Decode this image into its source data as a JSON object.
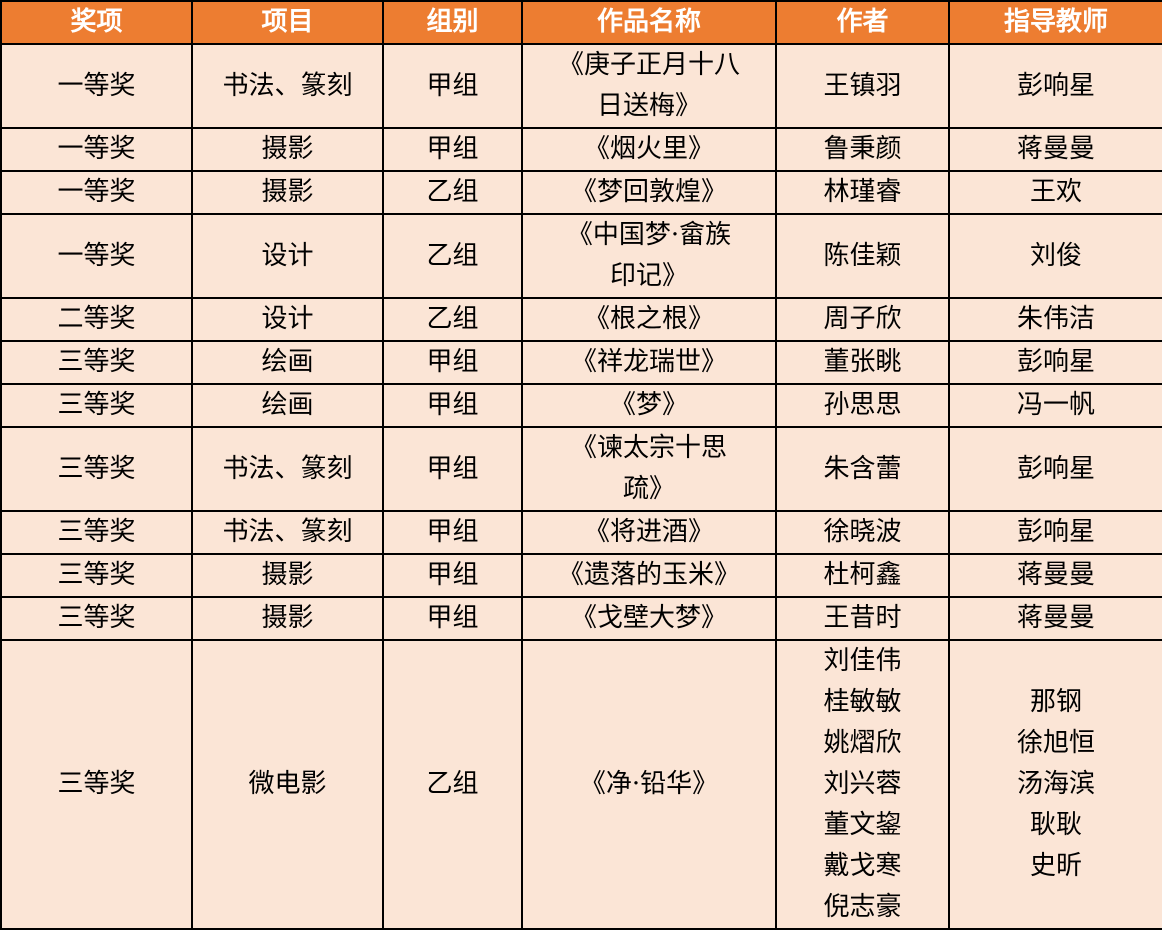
{
  "style": {
    "header_bg": "#ED7D31",
    "header_text": "#FFFFFF",
    "body_bg": "#FBE5D6",
    "body_text": "#000000",
    "border_color": "#000000"
  },
  "table": {
    "headers": [
      "奖项",
      "项目",
      "组别",
      "作品名称",
      "作者",
      "指导教师"
    ],
    "column_keys": [
      "award",
      "category",
      "group",
      "work",
      "author",
      "teacher"
    ],
    "rows": [
      {
        "award": "一等奖",
        "category": "书法、篆刻",
        "group": "甲组",
        "work": [
          "《庚子正月十八",
          "日送梅》"
        ],
        "author": "王镇羽",
        "teacher": "彭响星"
      },
      {
        "award": "一等奖",
        "category": "摄影",
        "group": "甲组",
        "work": "《烟火里》",
        "author": "鲁秉颜",
        "teacher": "蒋曼曼"
      },
      {
        "award": "一等奖",
        "category": "摄影",
        "group": "乙组",
        "work": "《梦回敦煌》",
        "author": "林瑾睿",
        "teacher": "王欢"
      },
      {
        "award": "一等奖",
        "category": "设计",
        "group": "乙组",
        "work": [
          "《中国梦·畲族",
          "印记》"
        ],
        "author": "陈佳颖",
        "teacher": "刘俊"
      },
      {
        "award": "二等奖",
        "category": "设计",
        "group": "乙组",
        "work": "《根之根》",
        "author": "周子欣",
        "teacher": "朱伟洁"
      },
      {
        "award": "三等奖",
        "category": "绘画",
        "group": "甲组",
        "work": "《祥龙瑞世》",
        "author": "董张眺",
        "teacher": "彭响星"
      },
      {
        "award": "三等奖",
        "category": "绘画",
        "group": "甲组",
        "work": "《梦》",
        "author": "孙思思",
        "teacher": "冯一帆"
      },
      {
        "award": "三等奖",
        "category": "书法、篆刻",
        "group": "甲组",
        "work": [
          "《谏太宗十思",
          "疏》"
        ],
        "author": "朱含蕾",
        "teacher": "彭响星"
      },
      {
        "award": "三等奖",
        "category": "书法、篆刻",
        "group": "甲组",
        "work": "《将进酒》",
        "author": "徐晓波",
        "teacher": "彭响星"
      },
      {
        "award": "三等奖",
        "category": "摄影",
        "group": "甲组",
        "work": "《遗落的玉米》",
        "author": "杜柯鑫",
        "teacher": "蒋曼曼"
      },
      {
        "award": "三等奖",
        "category": "摄影",
        "group": "甲组",
        "work": "《戈壁大梦》",
        "author": "王昔时",
        "teacher": "蒋曼曼"
      },
      {
        "award": "三等奖",
        "category": "微电影",
        "group": "乙组",
        "work": "《净·铅华》",
        "author": [
          "刘佳伟",
          "桂敏敏",
          "姚熠欣",
          "刘兴蓉",
          "董文鋆",
          "戴戈寒",
          "倪志豪"
        ],
        "teacher": [
          "那钢",
          "徐旭恒",
          "汤海滨",
          "耿耿",
          "史昕"
        ]
      }
    ]
  }
}
